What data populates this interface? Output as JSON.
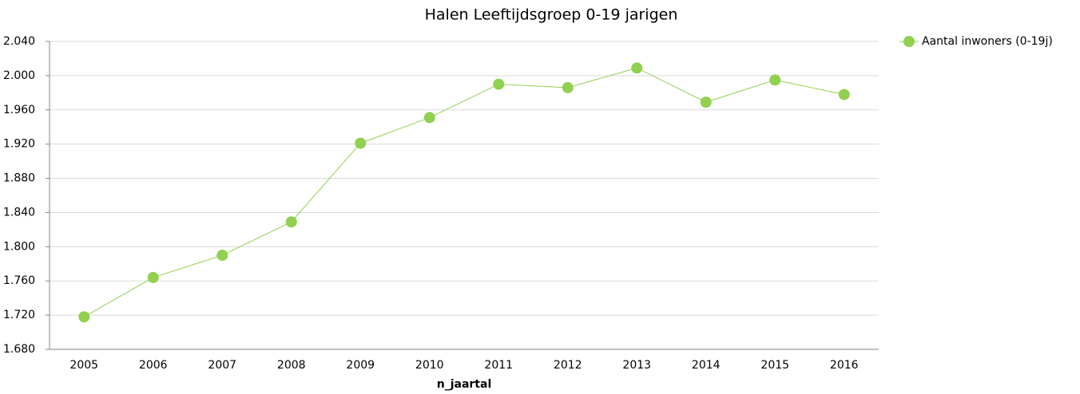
{
  "chart_data": {
    "type": "line",
    "title": "Halen  Leeftijdsgroep 0-19 jarigen",
    "x_label": "n_jaartal",
    "categories": [
      "2005",
      "2006",
      "2007",
      "2008",
      "2009",
      "2010",
      "2011",
      "2012",
      "2013",
      "2014",
      "2015",
      "2016"
    ],
    "series": [
      {
        "name": "Aantal inwoners (0-19j)",
        "color": "#92d050",
        "values": [
          1718,
          1764,
          1790,
          1829,
          1921,
          1951,
          1990,
          1986,
          2009,
          1969,
          1995,
          1978
        ]
      }
    ],
    "ylim": [
      1680,
      2040
    ],
    "yticks": [
      {
        "value": 1680,
        "label": "1.680"
      },
      {
        "value": 1720,
        "label": "1.720"
      },
      {
        "value": 1760,
        "label": "1.760"
      },
      {
        "value": 1800,
        "label": "1.800"
      },
      {
        "value": 1840,
        "label": "1.840"
      },
      {
        "value": 1880,
        "label": "1.880"
      },
      {
        "value": 1920,
        "label": "1.920"
      },
      {
        "value": 1960,
        "label": "1.960"
      },
      {
        "value": 2000,
        "label": "2.000"
      },
      {
        "value": 2040,
        "label": "2.040"
      }
    ],
    "grid": true,
    "legend": "top-right"
  }
}
